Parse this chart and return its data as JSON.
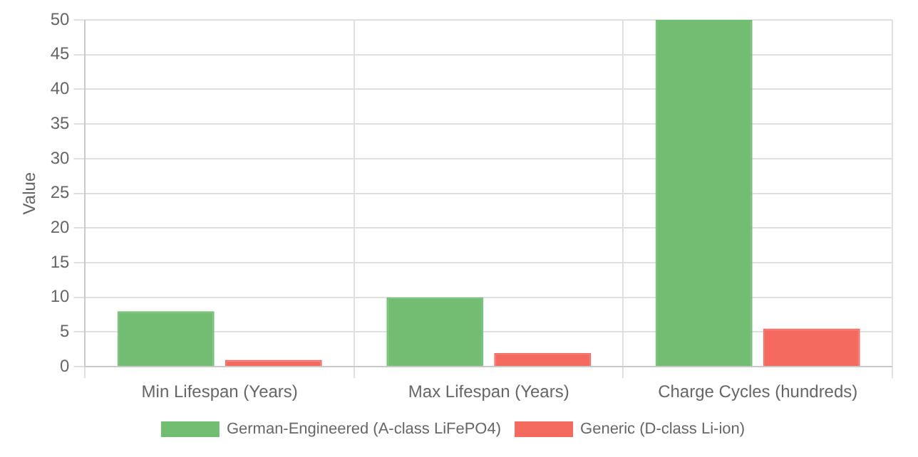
{
  "chart_data": {
    "type": "bar",
    "ylabel": "Value",
    "categories": [
      "Min Lifespan (Years)",
      "Max Lifespan (Years)",
      "Charge Cycles (hundreds)"
    ],
    "series": [
      {
        "name": "German-Engineered (A-class LiFePO4)",
        "color": "#71bd71",
        "values": [
          8,
          10,
          50
        ]
      },
      {
        "name": "Generic (D-class Li-ion)",
        "color": "#f56a5f",
        "values": [
          1,
          2,
          5.5
        ]
      }
    ],
    "ylim": [
      0,
      50
    ],
    "yticks": [
      0,
      5,
      10,
      15,
      20,
      25,
      30,
      35,
      40,
      45,
      50
    ],
    "grid": true,
    "legend": "bottom"
  }
}
